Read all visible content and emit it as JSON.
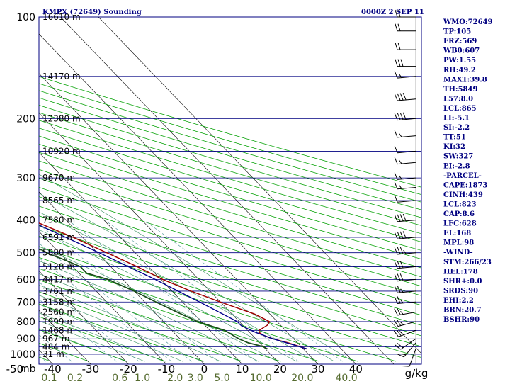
{
  "header": {
    "station": "KMPX (72649) Sounding",
    "time": "0000Z  2 SEP 11"
  },
  "colors": {
    "isobar": "#000080",
    "isotherm": "#000000",
    "dry_adiabat": "#00a000",
    "moist_adiabat": "#2e8b57",
    "mixing_ratio": "#5f9ea0",
    "temperature": "#a00000",
    "dewpoint": "#1a4d1a",
    "parcel": "#00008b",
    "wind": "#000000"
  },
  "chart_data": {
    "type": "skew-t",
    "xlabel": "g/kg",
    "pressure_ticks": [
      {
        "p": 100,
        "label": "100"
      },
      {
        "p": 200,
        "label": "200"
      },
      {
        "p": 300,
        "label": "300"
      },
      {
        "p": 400,
        "label": "400"
      },
      {
        "p": 500,
        "label": "500"
      },
      {
        "p": 600,
        "label": "600"
      },
      {
        "p": 700,
        "label": "700"
      },
      {
        "p": 800,
        "label": "800"
      },
      {
        "p": 900,
        "label": "900"
      },
      {
        "p": 1000,
        "label": "1000"
      }
    ],
    "pressure_unit": "mb",
    "temperature_ticks": [
      {
        "t": -50,
        "label": "-50"
      },
      {
        "t": -40,
        "label": "-40"
      },
      {
        "t": -30,
        "label": "-30"
      },
      {
        "t": -20,
        "label": "-20"
      },
      {
        "t": -10,
        "label": "-10"
      },
      {
        "t": 0,
        "label": "0"
      },
      {
        "t": 10,
        "label": "10"
      },
      {
        "t": 20,
        "label": "20"
      },
      {
        "t": 30,
        "label": "30"
      },
      {
        "t": 40,
        "label": "40"
      }
    ],
    "mixing_ratio_labels": [
      "0.1",
      "0.2",
      "0.6",
      "1.0",
      "2.0",
      "3.0",
      "5.0",
      "10.0",
      "20.0",
      "40.0"
    ],
    "mixing_ratio_values": [
      0.1,
      0.2,
      0.6,
      1.0,
      2.0,
      3.0,
      5.0,
      10.0,
      20.0,
      40.0
    ],
    "heights": [
      {
        "p": 100,
        "label": "16610 m"
      },
      {
        "p": 150,
        "label": "14170 m"
      },
      {
        "p": 200,
        "label": "12380 m"
      },
      {
        "p": 250,
        "label": "10920 m"
      },
      {
        "p": 300,
        "label": "9670 m"
      },
      {
        "p": 350,
        "label": "8565 m"
      },
      {
        "p": 400,
        "label": "7580 m"
      },
      {
        "p": 450,
        "label": "6591 m"
      },
      {
        "p": 500,
        "label": "5880 m"
      },
      {
        "p": 550,
        "label": "5128 m"
      },
      {
        "p": 600,
        "label": "4417 m"
      },
      {
        "p": 650,
        "label": "3761 m"
      },
      {
        "p": 700,
        "label": "3158 m"
      },
      {
        "p": 750,
        "label": "2560 m"
      },
      {
        "p": 800,
        "label": "1999 m"
      },
      {
        "p": 850,
        "label": "1468 m"
      },
      {
        "p": 900,
        "label": "967 m"
      },
      {
        "p": 950,
        "label": "484 m"
      },
      {
        "p": 1000,
        "label": "31 m"
      }
    ],
    "temperature_profile": [
      [
        965,
        31
      ],
      [
        925,
        27.5
      ],
      [
        900,
        24.5
      ],
      [
        880,
        23
      ],
      [
        862,
        22.5
      ],
      [
        850,
        23
      ],
      [
        820,
        26.5
      ],
      [
        800,
        28
      ],
      [
        760,
        26
      ],
      [
        700,
        20
      ],
      [
        650,
        15
      ],
      [
        600,
        10.5
      ],
      [
        550,
        7
      ],
      [
        500,
        2.5
      ],
      [
        450,
        -2.5
      ],
      [
        400,
        -9
      ],
      [
        350,
        -16
      ],
      [
        300,
        -24
      ],
      [
        250,
        -35
      ],
      [
        200,
        -45.5
      ],
      [
        185,
        -50
      ],
      [
        150,
        -53
      ],
      [
        130,
        -57
      ],
      [
        110,
        -62
      ],
      [
        100,
        -65
      ]
    ],
    "dewpoint_profile": [
      [
        965,
        20.5
      ],
      [
        950,
        20
      ],
      [
        925,
        17
      ],
      [
        900,
        15.5
      ],
      [
        850,
        14
      ],
      [
        800,
        9
      ],
      [
        750,
        6
      ],
      [
        700,
        3
      ],
      [
        650,
        0
      ],
      [
        600,
        -4
      ],
      [
        575,
        -8
      ],
      [
        550,
        -8
      ],
      [
        520,
        -11
      ],
      [
        505,
        -13
      ],
      [
        490,
        -14
      ],
      [
        480,
        -19
      ],
      [
        470,
        -15
      ],
      [
        465,
        -20
      ],
      [
        460,
        -17
      ],
      [
        455,
        -21
      ],
      [
        440,
        -20
      ],
      [
        420,
        -26
      ],
      [
        400,
        -30
      ],
      [
        380,
        -30
      ],
      [
        370,
        -35
      ],
      [
        360,
        -45
      ],
      [
        350,
        -45
      ],
      [
        355,
        -38
      ],
      [
        340,
        -26
      ],
      [
        300,
        -36
      ],
      [
        250,
        -47
      ],
      [
        230,
        -50
      ],
      [
        200,
        -51
      ],
      [
        170,
        -56
      ],
      [
        150,
        -60
      ],
      [
        130,
        -65
      ],
      [
        110,
        -72
      ],
      [
        100,
        -76
      ]
    ],
    "parcel_profile": [
      [
        965,
        31
      ],
      [
        900,
        24.5
      ],
      [
        860,
        21.5
      ],
      [
        823,
        19.5
      ],
      [
        800,
        19.5
      ],
      [
        700,
        14.5
      ],
      [
        600,
        8.5
      ],
      [
        500,
        0.5
      ],
      [
        400,
        -10
      ],
      [
        300,
        -25
      ],
      [
        250,
        -35
      ],
      [
        200,
        -47
      ],
      [
        150,
        -62
      ],
      [
        130,
        -70
      ]
    ],
    "wind_barbs": [
      {
        "p": 965,
        "dir": 200,
        "spd": 10
      },
      {
        "p": 925,
        "dir": 220,
        "spd": 15
      },
      {
        "p": 900,
        "dir": 235,
        "spd": 20
      },
      {
        "p": 850,
        "dir": 250,
        "spd": 25
      },
      {
        "p": 800,
        "dir": 255,
        "spd": 25
      },
      {
        "p": 750,
        "dir": 260,
        "spd": 25
      },
      {
        "p": 700,
        "dir": 265,
        "spd": 25
      },
      {
        "p": 650,
        "dir": 265,
        "spd": 25
      },
      {
        "p": 600,
        "dir": 265,
        "spd": 30
      },
      {
        "p": 550,
        "dir": 265,
        "spd": 30
      },
      {
        "p": 500,
        "dir": 265,
        "spd": 35
      },
      {
        "p": 450,
        "dir": 265,
        "spd": 40
      },
      {
        "p": 400,
        "dir": 265,
        "spd": 40
      },
      {
        "p": 350,
        "dir": 265,
        "spd": 50
      },
      {
        "p": 320,
        "dir": 265,
        "spd": 55
      },
      {
        "p": 300,
        "dir": 265,
        "spd": 55
      },
      {
        "p": 270,
        "dir": 265,
        "spd": 55
      },
      {
        "p": 250,
        "dir": 265,
        "spd": 50
      },
      {
        "p": 225,
        "dir": 265,
        "spd": 55
      },
      {
        "p": 200,
        "dir": 265,
        "spd": 40
      },
      {
        "p": 175,
        "dir": 265,
        "spd": 40
      },
      {
        "p": 150,
        "dir": 265,
        "spd": 55
      },
      {
        "p": 140,
        "dir": 270,
        "spd": 30
      },
      {
        "p": 125,
        "dir": 270,
        "spd": 20
      },
      {
        "p": 110,
        "dir": 270,
        "spd": 20
      },
      {
        "p": 100,
        "dir": 270,
        "spd": 20
      }
    ]
  },
  "indices": [
    "WMO:72649",
    "TP:105",
    "FRZ:569",
    "WB0:607",
    "PW:1.55",
    "RH:49.2",
    "MAXT:39.8",
    "TH:5849",
    "L57:8.0",
    "LCL:865",
    "LI:-5.1",
    "SI:-2.2",
    "TT:51",
    "KI:32",
    "SW:327",
    "EI:-2.8",
    "-PARCEL-",
    "CAPE:1873",
    "CINH:439",
    "LCL:823",
    "CAP:8.6",
    "LFC:628",
    "EL:168",
    "MPL:98",
    "-WIND-",
    "STM:266/23",
    "HEL:178",
    "SHR+:0.0",
    "SRDS:90",
    "EHI:2.2",
    "BRN:20.7",
    "BSHR:90"
  ]
}
